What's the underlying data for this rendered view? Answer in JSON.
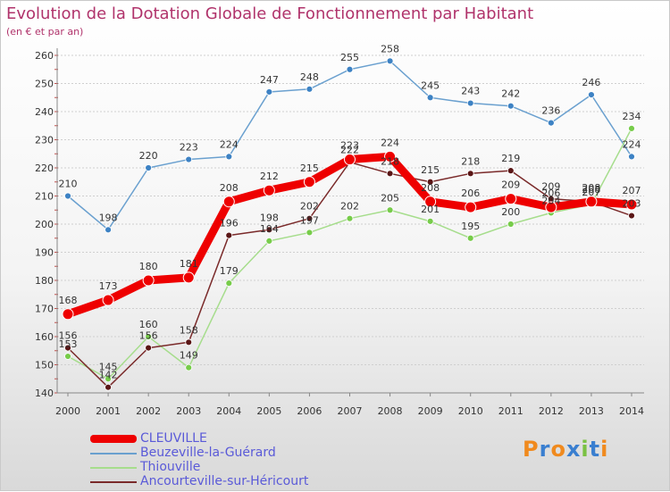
{
  "header": {
    "title": "Evolution de la Dotation Globale de Fonctionnement par Habitant",
    "subtitle": "(en € et par an)"
  },
  "chart_data": {
    "type": "line",
    "x": [
      "2000",
      "2001",
      "2002",
      "2003",
      "2004",
      "2005",
      "2006",
      "2007",
      "2008",
      "2009",
      "2010",
      "2011",
      "2012",
      "2013",
      "2014"
    ],
    "ylim": [
      140,
      260
    ],
    "yticks": [
      140,
      150,
      160,
      170,
      180,
      190,
      200,
      210,
      220,
      230,
      240,
      250,
      260
    ],
    "grid": "horizontal",
    "legend_position": "bottom-left",
    "series": [
      {
        "name": "Beuzeville-la-Guérard",
        "color": "#6aa0cf",
        "marker": "#3d82c4",
        "values": [
          210,
          198,
          220,
          223,
          224,
          247,
          248,
          255,
          258,
          245,
          243,
          242,
          236,
          246,
          224
        ]
      },
      {
        "name": "Thiouville",
        "color": "#a6dd8c",
        "marker": "#77cc4a",
        "values": [
          153,
          145,
          160,
          149,
          179,
          194,
          197,
          202,
          205,
          201,
          195,
          200,
          204,
          207,
          234
        ]
      },
      {
        "name": "Ancourteville-sur-Héricourt",
        "color": "#7a2a2a",
        "marker": "#5a1616",
        "values": [
          156,
          142,
          156,
          158,
          196,
          198,
          202,
          222,
          218,
          215,
          218,
          219,
          209,
          208,
          203
        ]
      },
      {
        "name": "CLEUVILLE",
        "color": "#ee0000",
        "marker": "#ee0000",
        "values": [
          168,
          173,
          180,
          181,
          208,
          212,
          215,
          223,
          224,
          208,
          206,
          209,
          206,
          208,
          207
        ]
      }
    ]
  },
  "logo": {
    "letters": [
      "P",
      "r",
      "o",
      "x",
      "i",
      "t",
      "i"
    ],
    "colors": [
      "#f08a1e",
      "#3a7fd0",
      "#f08a1e",
      "#3a7fd0",
      "#7ac143",
      "#3a7fd0",
      "#f08a1e"
    ]
  }
}
